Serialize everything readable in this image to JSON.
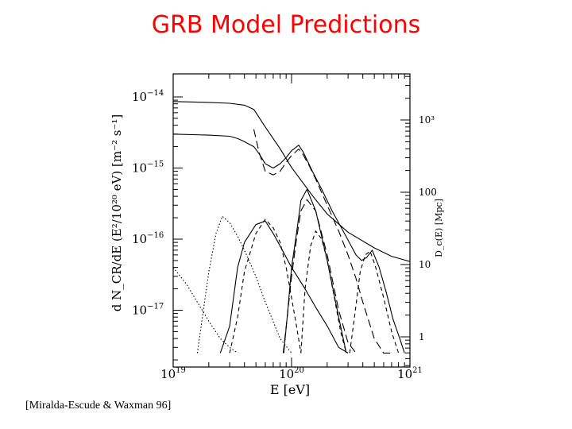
{
  "slide": {
    "title": "GRB Model Predictions",
    "citation": "[Miralda-Escude & Waxman 96]"
  },
  "chart_data": {
    "type": "line",
    "title": "",
    "xlabel": "E [eV]",
    "xscale": "log",
    "xlim": [
      1e+19,
      1e+21
    ],
    "x_ticks": [
      {
        "value": 1e+19,
        "mant": "10",
        "exp": "19"
      },
      {
        "value": 1e+20,
        "mant": "10",
        "exp": "20"
      },
      {
        "value": 1e+21,
        "mant": "10",
        "exp": "21"
      }
    ],
    "y_left": {
      "label": "d N_CR/dE (E²/10²⁰ eV) [m⁻² s⁻¹]",
      "scale": "log",
      "lim": [
        2.5e-18,
        2e-14
      ],
      "ticks": [
        {
          "value": 1e-14,
          "mant": "10",
          "exp": "−14"
        },
        {
          "value": 1e-15,
          "mant": "10",
          "exp": "−15"
        },
        {
          "value": 1e-16,
          "mant": "10",
          "exp": "−16"
        },
        {
          "value": 1e-17,
          "mant": "10",
          "exp": "−17"
        }
      ]
    },
    "y_right": {
      "label": "D_c(E) [Mpc]",
      "scale": "log",
      "ticks": [
        {
          "value": 1000,
          "text": "10³"
        },
        {
          "value": 100,
          "text": "100"
        },
        {
          "value": 10,
          "text": "10"
        },
        {
          "value": 1,
          "text": "1"
        }
      ]
    },
    "series": [
      {
        "axis": "right",
        "dash": "solid",
        "x": [
          1e+19,
          2e+19,
          3e+19,
          4e+19,
          4.8e+19,
          6e+19,
          8e+19,
          1e+20,
          1.5e+20,
          2e+20,
          3e+20,
          5e+20,
          7e+20,
          1e+21
        ],
        "y": [
          1800,
          1750,
          1700,
          1600,
          1400,
          800,
          400,
          220,
          90,
          50,
          28,
          17,
          13,
          11
        ]
      },
      {
        "axis": "left",
        "dash": "solid",
        "x": [
          1e+19,
          2e+19,
          3e+19,
          3.5e+19,
          3.9e+19,
          4.3e+19,
          4.8e+19,
          5.3e+19,
          6e+19,
          7e+19,
          8e+19,
          9e+19,
          1e+20,
          1.15e+20,
          1.25e+20,
          1.35e+20,
          1.5e+20,
          1.8e+20,
          2.2e+20,
          2.8e+20,
          3.5e+20,
          3.9e+20,
          4.3e+20,
          4.8e+20,
          5.5e+20,
          6.3e+20,
          7.2e+20,
          8.2e+20,
          9e+20
        ],
        "y": [
          3e-15,
          2.9e-15,
          2.8e-15,
          2.6e-15,
          2.4e-15,
          2.2e-15,
          2e-15,
          1.6e-15,
          1.15e-15,
          1e-15,
          1.15e-15,
          1.4e-15,
          1.75e-15,
          2.1e-15,
          1.7e-15,
          1.3e-15,
          9e-16,
          5e-16,
          2.5e-16,
          1.2e-16,
          6e-17,
          5e-17,
          5.5e-17,
          7e-17,
          4e-17,
          1.8e-17,
          7.5e-18,
          4e-18,
          2.5e-18
        ]
      },
      {
        "axis": "left",
        "dash": "longdash",
        "x": [
          4.8e+19,
          5.3e+19,
          6e+19,
          7e+19,
          8e+19,
          9e+19,
          1e+20,
          1.15e+20,
          1.25e+20,
          1.4e+20,
          1.6e+20,
          2e+20,
          2.5e+20,
          3e+20,
          3.5e+20,
          4e+20,
          4.5e+20,
          5e+20,
          6e+20,
          7e+20
        ],
        "y": [
          3.5e-15,
          1.7e-15,
          9e-16,
          8e-16,
          9e-16,
          1.2e-15,
          1.5e-15,
          1.85e-15,
          1.55e-15,
          1.1e-15,
          7e-16,
          3e-16,
          1.3e-16,
          6e-17,
          2.8e-17,
          1.3e-17,
          7e-18,
          4e-18,
          2.5e-18,
          2.5e-18
        ]
      },
      {
        "axis": "left",
        "dash": "solid",
        "x": [
          8.6e+19,
          9.3e+19,
          1e+20,
          1.1e+20,
          1.2e+20,
          1.35e+20,
          1.6e+20,
          2e+20,
          2.5e+20,
          2.9e+20
        ],
        "y": [
          2.5e-18,
          1e-17,
          4e-17,
          1.2e-16,
          3.5e-16,
          5e-16,
          2.5e-16,
          5e-17,
          8e-18,
          2.5e-18
        ]
      },
      {
        "axis": "left",
        "dash": "longdash",
        "x": [
          8.5e+19,
          9.2e+19,
          1e+20,
          1.1e+20,
          1.2e+20,
          1.35e+20,
          1.6e+20,
          2e+20,
          2.5e+20,
          3e+20,
          3.5e+20
        ],
        "y": [
          2.5e-18,
          8e-18,
          3e-17,
          1e-16,
          2.5e-16,
          3.6e-16,
          2.5e-16,
          6e-17,
          1e-17,
          3.5e-18,
          2.5e-18
        ]
      },
      {
        "axis": "left",
        "dash": "solid",
        "x": [
          2.5e+19,
          3e+19,
          3.5e+19,
          4e+19,
          5e+19,
          6e+19,
          7e+19,
          8e+19,
          1e+20,
          1.3e+20,
          1.6e+20,
          2e+20,
          2.5e+20,
          3e+20
        ],
        "y": [
          2.5e-18,
          6e-18,
          4e-17,
          9e-17,
          1.6e-16,
          1.8e-16,
          1.2e-16,
          8e-17,
          4e-17,
          2e-17,
          1.1e-17,
          6e-18,
          3e-18,
          2.5e-18
        ]
      },
      {
        "axis": "left",
        "dash": "shortdash",
        "x": [
          3e+19,
          3.5e+19,
          4e+19,
          5e+19,
          6e+19,
          7e+19,
          8e+19,
          9e+19,
          1e+20,
          1.1e+20,
          1.2e+20
        ],
        "y": [
          2.5e-18,
          8e-18,
          3.5e-17,
          1.2e-16,
          1.9e-16,
          1.45e-16,
          9e-17,
          4e-17,
          1.5e-17,
          6e-18,
          2.5e-18
        ]
      },
      {
        "axis": "left",
        "dash": "dotted",
        "x": [
          1.6e+19,
          1.8e+19,
          2e+19,
          2.3e+19,
          2.6e+19,
          3e+19,
          3.5e+19,
          4e+19,
          5e+19,
          6e+19,
          8e+19,
          1e+20
        ],
        "y": [
          2.5e-18,
          1e-17,
          3.5e-17,
          1.2e-16,
          2.1e-16,
          1.7e-16,
          1.1e-16,
          7e-17,
          3e-17,
          1.3e-17,
          4e-18,
          2.5e-18
        ]
      },
      {
        "axis": "left",
        "dash": "dotted",
        "x": [
          1e+19,
          1.3e+19,
          1.6e+19,
          2e+19,
          2.5e+19,
          3e+19,
          3.5e+19
        ],
        "y": [
          4e-17,
          2.3e-17,
          1.3e-17,
          7e-18,
          4e-18,
          3e-18,
          2.5e-18
        ]
      },
      {
        "axis": "left",
        "dash": "shortdash",
        "x": [
          1.2e+20,
          1.3e+20,
          1.45e+20,
          1.6e+20,
          1.8e+20,
          2e+20,
          2.3e+20,
          2.6e+20,
          2.9e+20
        ],
        "y": [
          2.5e-18,
          2e-17,
          8e-17,
          1.3e-16,
          1e-16,
          5e-17,
          1.5e-17,
          5e-18,
          2.5e-18
        ]
      },
      {
        "axis": "left",
        "dash": "shortdash",
        "x": [
          3.1e+20,
          3.4e+20,
          3.8e+20,
          4.2e+20,
          4.6e+20,
          5.1e+20,
          6e+20,
          7e+20,
          8e+20
        ],
        "y": [
          2.5e-18,
          8e-18,
          3.5e-17,
          6e-17,
          6.8e-17,
          4.2e-17,
          1.5e-17,
          5e-18,
          2.5e-18
        ]
      }
    ]
  }
}
